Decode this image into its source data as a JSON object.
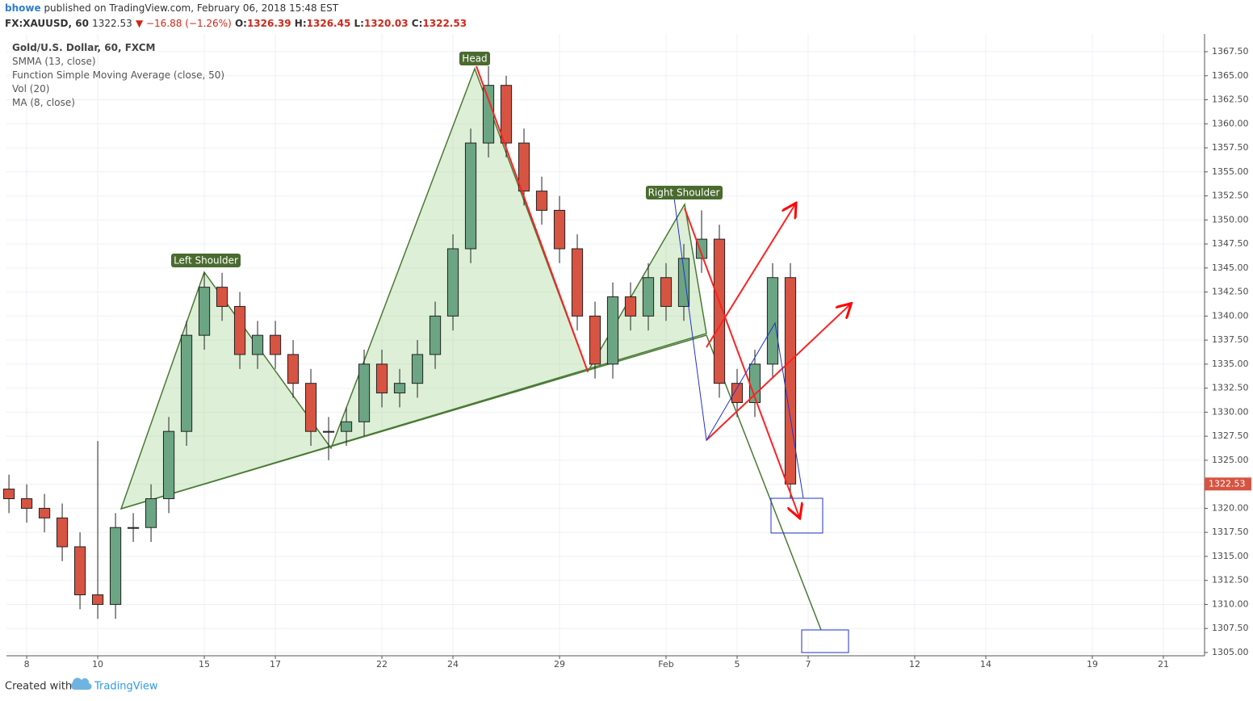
{
  "header": {
    "author": "bhowe",
    "published": "published on TradingView.com, February 06, 2018 15:48 EST",
    "symbol": "FX:XAUUSD, 60",
    "price": "1322.53",
    "change": "▼ −16.88 (−1.26%)",
    "ohlc": [
      {
        "label": "O:",
        "value": "1326.39"
      },
      {
        "label": "H:",
        "value": "1326.45"
      },
      {
        "label": "L:",
        "value": "1320.03"
      },
      {
        "label": "C:",
        "value": "1322.53"
      }
    ]
  },
  "legend": [
    "Gold/U.S. Dollar, 60, FXCM",
    "SMMA (13, close)",
    "Function Simple Moving Average (close, 50)",
    "Vol (20)",
    "MA (8, close)"
  ],
  "annotations": [
    "Left Shoulder",
    "Head",
    "Right Shoulder"
  ],
  "footer": {
    "created": "Created with",
    "brand": "TradingView"
  },
  "chart_data": {
    "type": "candlestick",
    "x": [
      -0.5,
      0,
      0.5,
      1,
      1.5,
      2,
      2.5,
      3,
      3.5,
      4,
      4.5,
      5,
      5.5,
      6,
      6.5,
      7,
      7.5,
      8,
      8.5,
      9,
      9.5,
      10,
      10.5,
      11,
      11.5,
      12,
      12.5,
      13,
      13.5,
      14,
      14.5,
      15,
      15.5,
      16,
      16.5,
      17,
      17.5,
      18,
      18.5,
      19,
      19.5,
      20,
      20.5,
      21,
      21.5
    ],
    "open": [
      1322,
      1321,
      1320,
      1319,
      1316,
      1311,
      1310,
      1318,
      1318,
      1321,
      1328,
      1338,
      1343,
      1341,
      1336,
      1338,
      1336,
      1333,
      1328,
      1328,
      1329,
      1335,
      1332,
      1333,
      1336,
      1340,
      1347,
      1358,
      1364,
      1358,
      1353,
      1351,
      1347,
      1340,
      1335,
      1342,
      1340,
      1344,
      1341,
      1346,
      1348,
      1333,
      1331,
      1335,
      1344
    ],
    "high": [
      1323.5,
      1322.5,
      1321.5,
      1320.5,
      1317.5,
      1327,
      1319.5,
      1319.5,
      1322.5,
      1329.5,
      1339.5,
      1344.5,
      1344.5,
      1342.5,
      1339.5,
      1339.5,
      1337.5,
      1334.5,
      1329.5,
      1330.5,
      1336.5,
      1336.5,
      1334.5,
      1337.5,
      1341.5,
      1348.5,
      1359.5,
      1366,
      1365,
      1359.5,
      1354.5,
      1352.5,
      1348.5,
      1341.5,
      1343.5,
      1343.5,
      1345.5,
      1345.5,
      1347.5,
      1351,
      1349.5,
      1334.5,
      1336.5,
      1345.5,
      1345.5
    ],
    "low": [
      1319.5,
      1318.5,
      1317.5,
      1314.5,
      1309.5,
      1308.5,
      1308.5,
      1316.5,
      1316.5,
      1319.5,
      1326.5,
      1336.5,
      1339.5,
      1334.5,
      1334.5,
      1334.5,
      1331.5,
      1326.5,
      1325,
      1326.5,
      1327.5,
      1330.5,
      1330.5,
      1331.5,
      1334.5,
      1338.5,
      1345.5,
      1356.5,
      1356.5,
      1351.5,
      1349.5,
      1345.5,
      1338.5,
      1333.5,
      1333.5,
      1338.5,
      1338.5,
      1339.5,
      1339.5,
      1344.5,
      1331.5,
      1329.5,
      1329.5,
      1333.5,
      1321
    ],
    "close": [
      1321,
      1320,
      1319,
      1316,
      1311,
      1310,
      1318,
      1318,
      1321,
      1328,
      1338,
      1343,
      1341,
      1336,
      1338,
      1336,
      1333,
      1328,
      1328,
      1329,
      1335,
      1332,
      1333,
      1336,
      1340,
      1347,
      1358,
      1364,
      1358,
      1353,
      1351,
      1347,
      1340,
      1335,
      1342,
      1340,
      1344,
      1341,
      1346,
      1348,
      1333,
      1331,
      1335,
      1344,
      1322.53
    ],
    "up_color": "#6ba583",
    "down_color": "#d75442",
    "last_value": 1322.53,
    "xlim": [
      -0.57,
      33.16
    ],
    "ylim": [
      1304.66,
      1369.35
    ],
    "xticks": [
      {
        "value": 0,
        "label": "8"
      },
      {
        "value": 2,
        "label": "10"
      },
      {
        "value": 5,
        "label": "15"
      },
      {
        "value": 7,
        "label": "17"
      },
      {
        "value": 10,
        "label": "22"
      },
      {
        "value": 12,
        "label": "24"
      },
      {
        "value": 15,
        "label": "29"
      },
      {
        "value": 18,
        "label": "Feb"
      },
      {
        "value": 20,
        "label": "5"
      },
      {
        "value": 22,
        "label": "7"
      },
      {
        "value": 25,
        "label": "12"
      },
      {
        "value": 27,
        "label": "14"
      },
      {
        "value": 30,
        "label": "19"
      },
      {
        "value": 32,
        "label": "21"
      }
    ],
    "yticks": [
      {
        "value": 1305,
        "label": "1305.00"
      },
      {
        "value": 1307.5,
        "label": "1307.50"
      },
      {
        "value": 1310,
        "label": "1310.00"
      },
      {
        "value": 1312.5,
        "label": "1312.50"
      },
      {
        "value": 1315,
        "label": "1315.00"
      },
      {
        "value": 1317.5,
        "label": "1317.50"
      },
      {
        "value": 1320,
        "label": "1320.00"
      },
      {
        "value": 1322.5,
        "label": "1322.50"
      },
      {
        "value": 1325,
        "label": "1325.00"
      },
      {
        "value": 1327.5,
        "label": "1327.50"
      },
      {
        "value": 1330,
        "label": "1330.00"
      },
      {
        "value": 1332.5,
        "label": "1332.50"
      },
      {
        "value": 1335,
        "label": "1335.00"
      },
      {
        "value": 1337.5,
        "label": "1337.50"
      },
      {
        "value": 1340,
        "label": "1340.00"
      },
      {
        "value": 1342.5,
        "label": "1342.50"
      },
      {
        "value": 1345,
        "label": "1345.00"
      },
      {
        "value": 1347.5,
        "label": "1347.50"
      },
      {
        "value": 1350,
        "label": "1350.00"
      },
      {
        "value": 1352.5,
        "label": "1352.50"
      },
      {
        "value": 1355,
        "label": "1355.00"
      },
      {
        "value": 1357.5,
        "label": "1357.50"
      },
      {
        "value": 1360,
        "label": "1360.00"
      },
      {
        "value": 1362.5,
        "label": "1362.50"
      },
      {
        "value": 1365,
        "label": "1365.00"
      },
      {
        "value": 1367.5,
        "label": "1367.50"
      }
    ],
    "grid": true
  }
}
